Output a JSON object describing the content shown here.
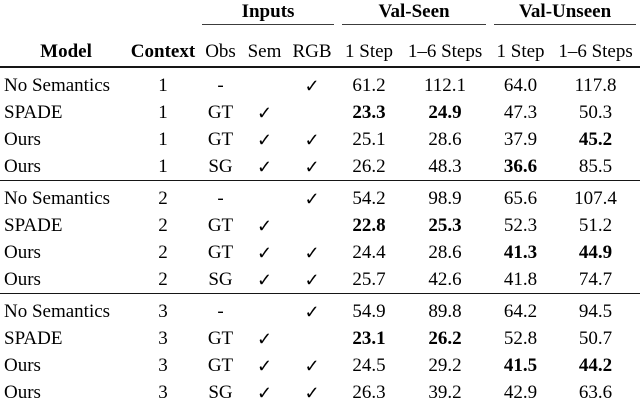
{
  "icons": {
    "check": "✓"
  },
  "table": {
    "group_headers": [
      {
        "label": "Inputs"
      },
      {
        "label": "Val-Seen"
      },
      {
        "label": "Val-Unseen"
      }
    ],
    "columns": [
      "Model",
      "Context",
      "Obs",
      "Sem",
      "RGB",
      "1 Step",
      "1–6 Steps",
      "1 Step",
      "1–6 Steps"
    ],
    "groups": [
      {
        "rows": [
          {
            "model": "No Semantics",
            "context": "1",
            "obs": "-",
            "sem": false,
            "rgb": true,
            "values": [
              {
                "v": "61.2",
                "bold": false
              },
              {
                "v": "112.1",
                "bold": false
              },
              {
                "v": "64.0",
                "bold": false
              },
              {
                "v": "117.8",
                "bold": false
              }
            ]
          },
          {
            "model": "SPADE",
            "context": "1",
            "obs": "GT",
            "sem": true,
            "rgb": false,
            "values": [
              {
                "v": "23.3",
                "bold": true
              },
              {
                "v": "24.9",
                "bold": true
              },
              {
                "v": "47.3",
                "bold": false
              },
              {
                "v": "50.3",
                "bold": false
              }
            ]
          },
          {
            "model": "Ours",
            "context": "1",
            "obs": "GT",
            "sem": true,
            "rgb": true,
            "values": [
              {
                "v": "25.1",
                "bold": false
              },
              {
                "v": "28.6",
                "bold": false
              },
              {
                "v": "37.9",
                "bold": false
              },
              {
                "v": "45.2",
                "bold": true
              }
            ]
          },
          {
            "model": "Ours",
            "context": "1",
            "obs": "SG",
            "sem": true,
            "rgb": true,
            "values": [
              {
                "v": "26.2",
                "bold": false
              },
              {
                "v": "48.3",
                "bold": false
              },
              {
                "v": "36.6",
                "bold": true
              },
              {
                "v": "85.5",
                "bold": false
              }
            ]
          }
        ]
      },
      {
        "rows": [
          {
            "model": "No Semantics",
            "context": "2",
            "obs": "-",
            "sem": false,
            "rgb": true,
            "values": [
              {
                "v": "54.2",
                "bold": false
              },
              {
                "v": "98.9",
                "bold": false
              },
              {
                "v": "65.6",
                "bold": false
              },
              {
                "v": "107.4",
                "bold": false
              }
            ]
          },
          {
            "model": "SPADE",
            "context": "2",
            "obs": "GT",
            "sem": true,
            "rgb": false,
            "values": [
              {
                "v": "22.8",
                "bold": true
              },
              {
                "v": "25.3",
                "bold": true
              },
              {
                "v": "52.3",
                "bold": false
              },
              {
                "v": "51.2",
                "bold": false
              }
            ]
          },
          {
            "model": "Ours",
            "context": "2",
            "obs": "GT",
            "sem": true,
            "rgb": true,
            "values": [
              {
                "v": "24.4",
                "bold": false
              },
              {
                "v": "28.6",
                "bold": false
              },
              {
                "v": "41.3",
                "bold": true
              },
              {
                "v": "44.9",
                "bold": true
              }
            ]
          },
          {
            "model": "Ours",
            "context": "2",
            "obs": "SG",
            "sem": true,
            "rgb": true,
            "values": [
              {
                "v": "25.7",
                "bold": false
              },
              {
                "v": "42.6",
                "bold": false
              },
              {
                "v": "41.8",
                "bold": false
              },
              {
                "v": "74.7",
                "bold": false
              }
            ]
          }
        ]
      },
      {
        "rows": [
          {
            "model": "No Semantics",
            "context": "3",
            "obs": "-",
            "sem": false,
            "rgb": true,
            "values": [
              {
                "v": "54.9",
                "bold": false
              },
              {
                "v": "89.8",
                "bold": false
              },
              {
                "v": "64.2",
                "bold": false
              },
              {
                "v": "94.5",
                "bold": false
              }
            ]
          },
          {
            "model": "SPADE",
            "context": "3",
            "obs": "GT",
            "sem": true,
            "rgb": false,
            "values": [
              {
                "v": "23.1",
                "bold": true
              },
              {
                "v": "26.2",
                "bold": true
              },
              {
                "v": "52.8",
                "bold": false
              },
              {
                "v": "50.7",
                "bold": false
              }
            ]
          },
          {
            "model": "Ours",
            "context": "3",
            "obs": "GT",
            "sem": true,
            "rgb": true,
            "values": [
              {
                "v": "24.5",
                "bold": false
              },
              {
                "v": "29.2",
                "bold": false
              },
              {
                "v": "41.5",
                "bold": true
              },
              {
                "v": "44.2",
                "bold": true
              }
            ]
          },
          {
            "model": "Ours",
            "context": "3",
            "obs": "SG",
            "sem": true,
            "rgb": true,
            "values": [
              {
                "v": "26.3",
                "bold": false
              },
              {
                "v": "39.2",
                "bold": false
              },
              {
                "v": "42.9",
                "bold": false
              },
              {
                "v": "63.6",
                "bold": false
              }
            ]
          }
        ]
      }
    ]
  }
}
